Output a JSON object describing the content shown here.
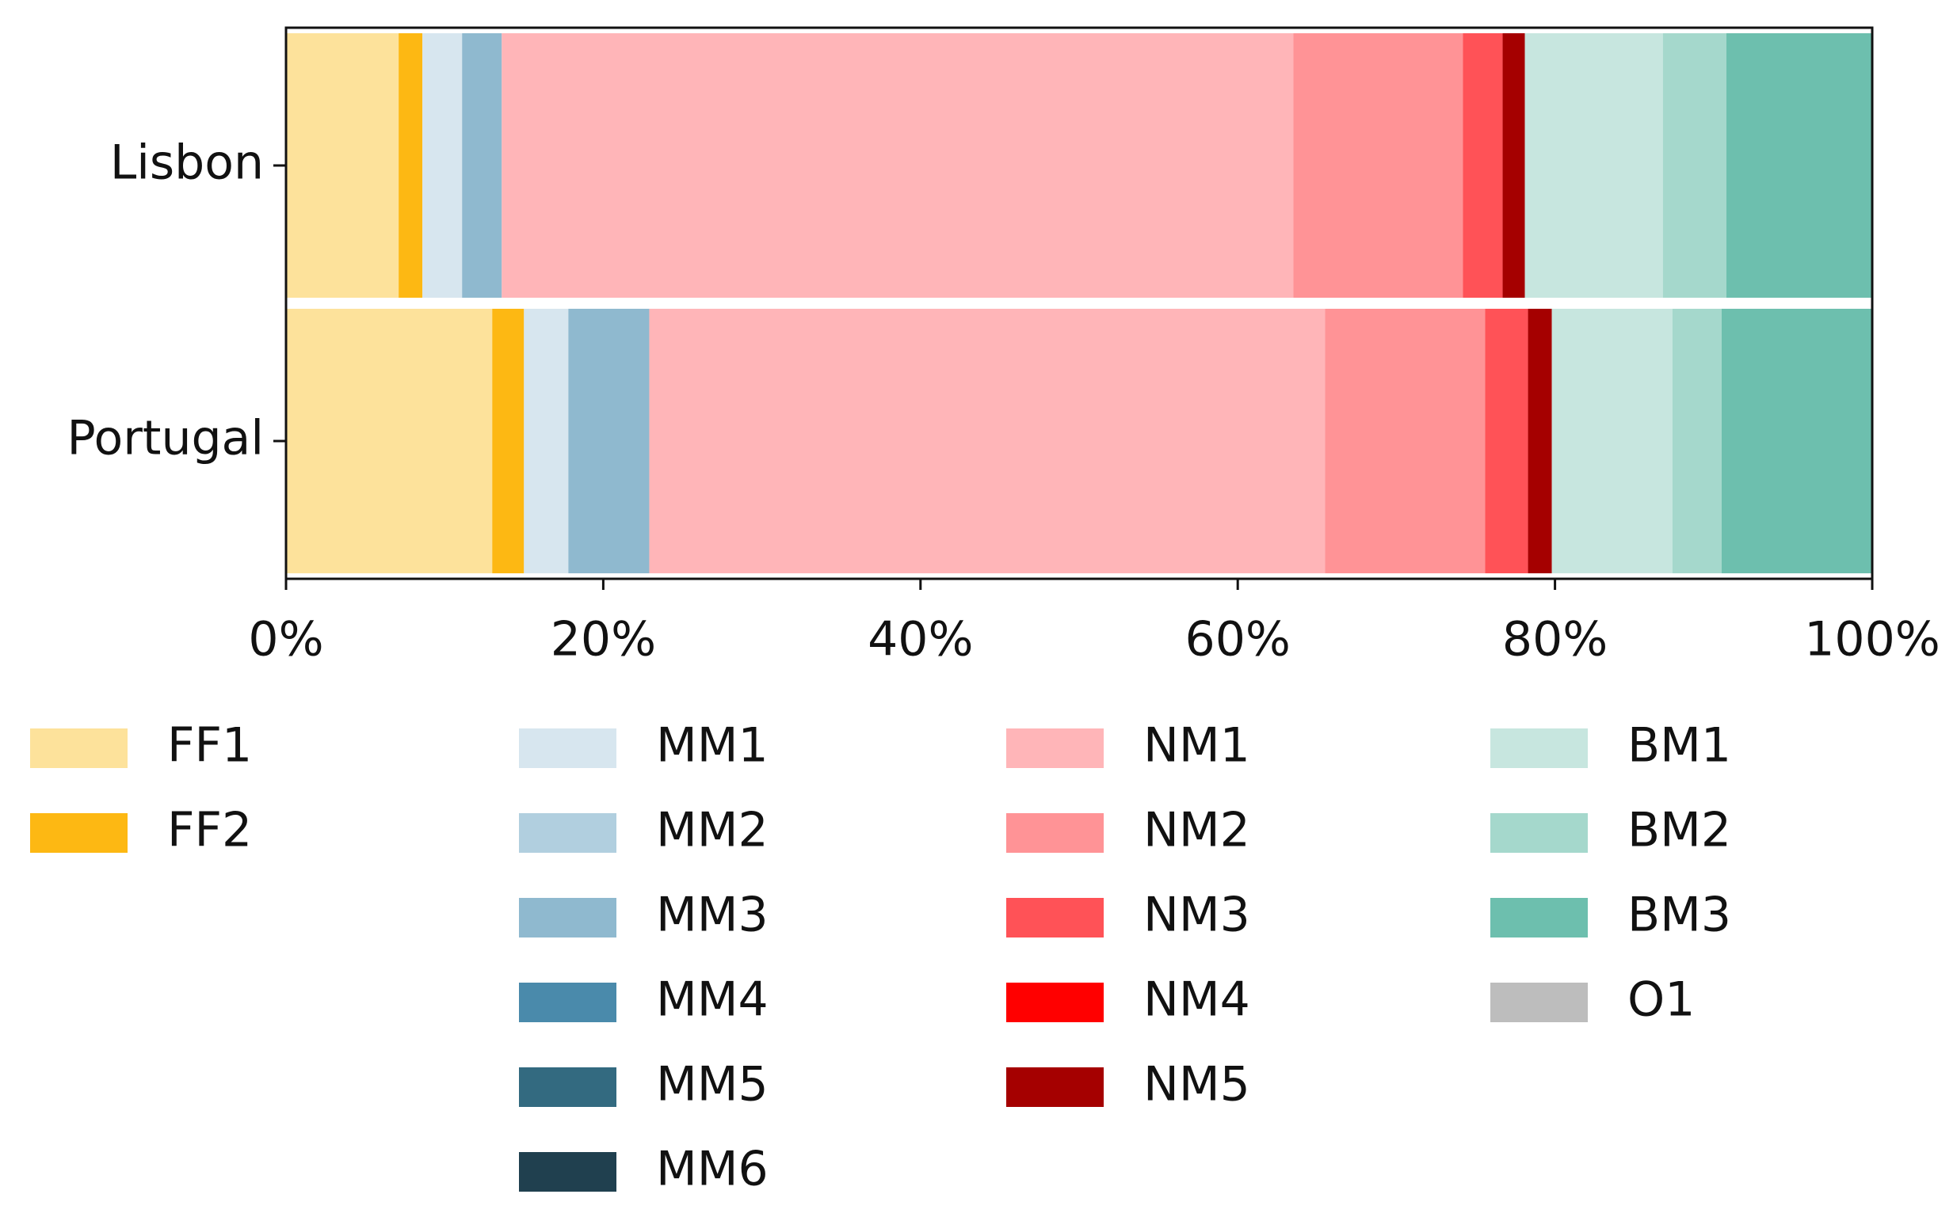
{
  "chart_data": {
    "type": "stacked-barh",
    "categories": [
      "Lisbon",
      "Portugal"
    ],
    "series": [
      {
        "name": "FF1",
        "color": "#fde29b",
        "values": [
          7.1,
          13.0
        ]
      },
      {
        "name": "FF2",
        "color": "#fdb813",
        "values": [
          1.5,
          2.0
        ]
      },
      {
        "name": "MM1",
        "color": "#d7e6ef",
        "values": [
          2.5,
          2.8
        ]
      },
      {
        "name": "MM2",
        "color": "#b1cfdf",
        "values": [
          0,
          0
        ]
      },
      {
        "name": "MM3",
        "color": "#8fb9cf",
        "values": [
          2.5,
          5.1
        ]
      },
      {
        "name": "MM4",
        "color": "#4a8aab",
        "values": [
          0,
          0
        ]
      },
      {
        "name": "MM5",
        "color": "#336a80",
        "values": [
          0,
          0
        ]
      },
      {
        "name": "MM6",
        "color": "#20404f",
        "values": [
          0,
          0
        ]
      },
      {
        "name": "NM1",
        "color": "#ffb5b8",
        "values": [
          49.9,
          42.6
        ]
      },
      {
        "name": "NM2",
        "color": "#ff9396",
        "values": [
          10.7,
          10.1
        ]
      },
      {
        "name": "NM3",
        "color": "#ff5257",
        "values": [
          2.5,
          2.7
        ]
      },
      {
        "name": "NM4",
        "color": "#ff0000",
        "values": [
          0,
          0
        ]
      },
      {
        "name": "NM5",
        "color": "#a50000",
        "values": [
          1.4,
          1.5
        ]
      },
      {
        "name": "BM1",
        "color": "#c7e6df",
        "values": [
          8.7,
          7.6
        ]
      },
      {
        "name": "BM2",
        "color": "#a5d8cc",
        "values": [
          4.0,
          3.1
        ]
      },
      {
        "name": "BM3",
        "color": "#6dbfae",
        "values": [
          9.2,
          9.5
        ]
      },
      {
        "name": "O1",
        "color": "#bdbdbd",
        "values": [
          0,
          0
        ]
      }
    ],
    "xlim": [
      0,
      100
    ],
    "xticks": [
      {
        "value": 0,
        "label": "0%"
      },
      {
        "value": 20,
        "label": "20%"
      },
      {
        "value": 40,
        "label": "40%"
      },
      {
        "value": 60,
        "label": "60%"
      },
      {
        "value": 80,
        "label": "80%"
      },
      {
        "value": 100,
        "label": "100%"
      }
    ]
  }
}
